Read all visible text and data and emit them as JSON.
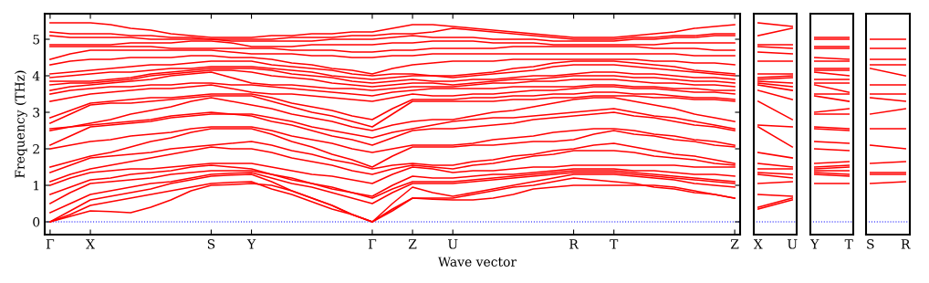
{
  "chart_data": [
    {
      "type": "line",
      "xlabel": "Wave vector",
      "ylabel": "Frequency (THz)",
      "categories": [
        "Γ",
        null,
        "X",
        null,
        null,
        null,
        null,
        null,
        "S",
        null,
        "Y",
        null,
        null,
        null,
        null,
        null,
        "Γ",
        null,
        "Z",
        null,
        "U",
        null,
        null,
        null,
        null,
        null,
        "R",
        null,
        "T",
        null,
        null,
        null,
        null,
        null,
        "Z"
      ],
      "ylim": [
        -0.35,
        5.7
      ],
      "yticks": [
        0,
        1,
        2,
        3,
        4,
        5
      ],
      "grid": false,
      "legend": false,
      "ref_lines": [
        {
          "axis": "y",
          "value": 0,
          "color": "#0000ff",
          "line_style": "dotted"
        }
      ],
      "series": [
        {
          "color": "#ff0000",
          "values": [
            0,
            0.15,
            0.3,
            0.28,
            0.25,
            0.4,
            0.6,
            0.85,
            1.0,
            1.02,
            1.05,
            1.0,
            0.85,
            0.65,
            0.45,
            0.2,
            0,
            0.35,
            0.65,
            0.62,
            0.6,
            0.6,
            0.65,
            0.75,
            0.9,
            0.95,
            1.0,
            1.0,
            1.0,
            1.0,
            1.0,
            0.95,
            0.85,
            0.75,
            0.65
          ]
        },
        {
          "color": "#ff0000",
          "values": [
            0,
            0.2,
            0.45,
            0.55,
            0.65,
            0.75,
            0.85,
            0.95,
            1.05,
            1.08,
            1.1,
            0.9,
            0.75,
            0.55,
            0.35,
            0.2,
            0,
            0.3,
            0.65,
            0.65,
            0.65,
            0.75,
            0.85,
            0.95,
            1.0,
            1.1,
            1.2,
            1.15,
            1.1,
            1.05,
            0.95,
            0.9,
            0.8,
            0.75,
            0.65
          ]
        },
        {
          "color": "#ff0000",
          "values": [
            0,
            0.3,
            0.6,
            0.7,
            0.8,
            0.9,
            1.05,
            1.15,
            1.25,
            1.28,
            1.3,
            1.1,
            0.85,
            0.65,
            0.45,
            0.2,
            0,
            0.5,
            0.95,
            0.8,
            0.7,
            0.8,
            0.9,
            1.0,
            1.1,
            1.2,
            1.3,
            1.3,
            1.3,
            1.25,
            1.2,
            1.15,
            1.05,
            1.0,
            0.95
          ]
        },
        {
          "color": "#ff0000",
          "values": [
            0.25,
            0.5,
            0.75,
            0.85,
            0.95,
            1.05,
            1.1,
            1.2,
            1.3,
            1.33,
            1.35,
            1.2,
            1.05,
            0.95,
            0.8,
            0.65,
            0.5,
            0.8,
            1.05,
            1.05,
            1.05,
            1.1,
            1.15,
            1.2,
            1.25,
            1.3,
            1.35,
            1.35,
            1.35,
            1.3,
            1.25,
            1.2,
            1.15,
            1.1,
            1.05
          ]
        },
        {
          "color": "#ff0000",
          "values": [
            0.5,
            0.8,
            1.05,
            1.1,
            1.15,
            1.2,
            1.3,
            1.35,
            1.4,
            1.4,
            1.4,
            1.3,
            1.15,
            1.05,
            0.9,
            0.8,
            0.65,
            0.9,
            1.1,
            1.1,
            1.1,
            1.15,
            1.2,
            1.25,
            1.3,
            1.35,
            1.4,
            1.4,
            1.4,
            1.35,
            1.3,
            1.25,
            1.2,
            1.15,
            1.1
          ]
        },
        {
          "color": "#ff0000",
          "values": [
            0.75,
            0.95,
            1.15,
            1.2,
            1.3,
            1.35,
            1.4,
            1.5,
            1.55,
            1.5,
            1.45,
            1.3,
            1.2,
            1.05,
            0.95,
            0.8,
            0.7,
            1.0,
            1.25,
            1.2,
            1.2,
            1.25,
            1.3,
            1.3,
            1.35,
            1.4,
            1.45,
            1.45,
            1.45,
            1.4,
            1.4,
            1.35,
            1.3,
            1.3,
            1.25
          ]
        },
        {
          "color": "#ff0000",
          "values": [
            1.0,
            1.2,
            1.35,
            1.4,
            1.45,
            1.45,
            1.5,
            1.55,
            1.6,
            1.6,
            1.6,
            1.5,
            1.4,
            1.3,
            1.25,
            1.15,
            1.05,
            1.3,
            1.5,
            1.45,
            1.35,
            1.4,
            1.4,
            1.45,
            1.5,
            1.5,
            1.55,
            1.55,
            1.55,
            1.55,
            1.55,
            1.55,
            1.5,
            1.5,
            1.5
          ]
        },
        {
          "color": "#ff0000",
          "values": [
            1.1,
            1.3,
            1.45,
            1.55,
            1.65,
            1.75,
            1.85,
            1.95,
            2.05,
            2.0,
            2.0,
            1.9,
            1.75,
            1.65,
            1.55,
            1.4,
            1.3,
            1.45,
            1.55,
            1.5,
            1.45,
            1.55,
            1.6,
            1.7,
            1.8,
            1.85,
            1.95,
            1.95,
            1.95,
            1.9,
            1.8,
            1.75,
            1.7,
            1.6,
            1.55
          ]
        },
        {
          "color": "#ff0000",
          "values": [
            1.35,
            1.55,
            1.75,
            1.8,
            1.85,
            1.9,
            2.0,
            2.05,
            2.1,
            2.15,
            2.2,
            2.1,
            1.95,
            1.85,
            1.7,
            1.6,
            1.45,
            1.55,
            1.6,
            1.55,
            1.55,
            1.65,
            1.7,
            1.8,
            1.85,
            1.95,
            2.0,
            2.1,
            2.15,
            2.05,
            1.95,
            1.85,
            1.8,
            1.7,
            1.6
          ]
        },
        {
          "color": "#ff0000",
          "values": [
            1.5,
            1.65,
            1.8,
            1.9,
            2.05,
            2.2,
            2.3,
            2.45,
            2.55,
            2.55,
            2.55,
            2.4,
            2.2,
            2.05,
            1.85,
            1.7,
            1.5,
            1.8,
            2.05,
            2.05,
            2.05,
            2.1,
            2.1,
            2.15,
            2.2,
            2.2,
            2.25,
            2.4,
            2.5,
            2.4,
            2.35,
            2.25,
            2.2,
            2.1,
            2.05
          ]
        },
        {
          "color": "#ff0000",
          "values": [
            2.0,
            2.1,
            2.2,
            2.25,
            2.35,
            2.4,
            2.45,
            2.55,
            2.6,
            2.6,
            2.6,
            2.5,
            2.35,
            2.25,
            2.15,
            2.0,
            1.9,
            2.0,
            2.1,
            2.1,
            2.1,
            2.15,
            2.25,
            2.3,
            2.35,
            2.45,
            2.5,
            2.55,
            2.55,
            2.5,
            2.4,
            2.35,
            2.25,
            2.2,
            2.1
          ]
        },
        {
          "color": "#ff0000",
          "values": [
            2.1,
            2.35,
            2.6,
            2.65,
            2.7,
            2.75,
            2.85,
            2.9,
            2.95,
            2.95,
            2.9,
            2.75,
            2.65,
            2.5,
            2.35,
            2.25,
            2.1,
            2.3,
            2.5,
            2.55,
            2.55,
            2.6,
            2.65,
            2.7,
            2.8,
            2.85,
            2.9,
            2.95,
            3.0,
            2.9,
            2.85,
            2.75,
            2.65,
            2.6,
            2.5
          ]
        },
        {
          "color": "#ff0000",
          "values": [
            2.5,
            2.6,
            2.65,
            2.7,
            2.75,
            2.8,
            2.9,
            2.95,
            3.0,
            2.95,
            2.95,
            2.85,
            2.75,
            2.6,
            2.5,
            2.4,
            2.3,
            2.45,
            2.55,
            2.65,
            2.75,
            2.8,
            2.85,
            2.85,
            2.9,
            2.95,
            3.0,
            3.05,
            3.1,
            3.0,
            2.9,
            2.85,
            2.75,
            2.65,
            2.55
          ]
        },
        {
          "color": "#ff0000",
          "values": [
            2.55,
            2.6,
            2.7,
            2.8,
            2.95,
            3.05,
            3.15,
            3.3,
            3.4,
            3.3,
            3.2,
            3.1,
            2.95,
            2.85,
            2.75,
            2.6,
            2.5,
            2.65,
            2.75,
            2.8,
            2.8,
            2.9,
            3.0,
            3.05,
            3.15,
            3.25,
            3.35,
            3.4,
            3.4,
            3.3,
            3.2,
            3.1,
            2.95,
            2.85,
            2.75
          ]
        },
        {
          "color": "#ff0000",
          "values": [
            2.7,
            2.95,
            3.2,
            3.25,
            3.25,
            3.3,
            3.35,
            3.4,
            3.45,
            3.45,
            3.45,
            3.3,
            3.15,
            3.0,
            2.9,
            2.75,
            2.6,
            2.95,
            3.3,
            3.3,
            3.3,
            3.3,
            3.3,
            3.35,
            3.35,
            3.4,
            3.4,
            3.45,
            3.45,
            3.45,
            3.4,
            3.4,
            3.35,
            3.35,
            3.3
          ]
        },
        {
          "color": "#ff0000",
          "values": [
            2.85,
            3.05,
            3.25,
            3.3,
            3.35,
            3.4,
            3.4,
            3.45,
            3.5,
            3.5,
            3.5,
            3.4,
            3.25,
            3.15,
            3.05,
            2.9,
            2.8,
            3.1,
            3.35,
            3.35,
            3.35,
            3.4,
            3.4,
            3.45,
            3.45,
            3.5,
            3.5,
            3.55,
            3.55,
            3.5,
            3.5,
            3.45,
            3.4,
            3.4,
            3.35
          ]
        },
        {
          "color": "#ff0000",
          "values": [
            3.3,
            3.4,
            3.5,
            3.55,
            3.6,
            3.65,
            3.65,
            3.7,
            3.75,
            3.65,
            3.55,
            3.5,
            3.5,
            3.45,
            3.4,
            3.35,
            3.3,
            3.4,
            3.5,
            3.45,
            3.45,
            3.5,
            3.5,
            3.55,
            3.6,
            3.6,
            3.65,
            3.7,
            3.7,
            3.65,
            3.65,
            3.6,
            3.55,
            3.55,
            3.5
          ]
        },
        {
          "color": "#ff0000",
          "values": [
            3.5,
            3.6,
            3.65,
            3.7,
            3.7,
            3.75,
            3.75,
            3.8,
            3.8,
            3.75,
            3.75,
            3.7,
            3.65,
            3.6,
            3.55,
            3.5,
            3.45,
            3.55,
            3.6,
            3.65,
            3.65,
            3.65,
            3.65,
            3.7,
            3.7,
            3.7,
            3.7,
            3.75,
            3.75,
            3.7,
            3.7,
            3.65,
            3.65,
            3.6,
            3.6
          ]
        },
        {
          "color": "#ff0000",
          "values": [
            3.6,
            3.7,
            3.75,
            3.8,
            3.85,
            3.9,
            4.0,
            4.05,
            4.1,
            3.95,
            3.8,
            3.75,
            3.75,
            3.7,
            3.65,
            3.65,
            3.6,
            3.65,
            3.7,
            3.7,
            3.7,
            3.75,
            3.8,
            3.8,
            3.85,
            3.85,
            3.9,
            3.9,
            3.9,
            3.85,
            3.8,
            3.8,
            3.75,
            3.75,
            3.7
          ]
        },
        {
          "color": "#ff0000",
          "values": [
            3.75,
            3.8,
            3.8,
            3.85,
            3.9,
            4.0,
            4.05,
            4.1,
            4.15,
            4.15,
            4.1,
            4.0,
            3.95,
            3.9,
            3.8,
            3.75,
            3.7,
            3.75,
            3.8,
            3.8,
            3.75,
            3.8,
            3.85,
            3.9,
            3.9,
            3.95,
            4.0,
            4.0,
            4.0,
            3.95,
            3.95,
            3.9,
            3.85,
            3.85,
            3.8
          ]
        },
        {
          "color": "#ff0000",
          "values": [
            3.85,
            3.85,
            3.85,
            3.9,
            3.95,
            4.05,
            4.1,
            4.15,
            4.2,
            4.2,
            4.2,
            4.15,
            4.05,
            4.0,
            3.95,
            3.85,
            3.8,
            3.85,
            3.9,
            3.85,
            3.85,
            3.9,
            3.9,
            3.95,
            4.0,
            4.0,
            4.05,
            4.1,
            4.1,
            4.05,
            4.05,
            4.0,
            3.95,
            3.95,
            3.9
          ]
        },
        {
          "color": "#ff0000",
          "values": [
            3.95,
            4.0,
            4.05,
            4.1,
            4.1,
            4.15,
            4.2,
            4.2,
            4.25,
            4.25,
            4.25,
            4.2,
            4.15,
            4.1,
            4.0,
            3.95,
            3.9,
            3.95,
            4.0,
            4.0,
            3.95,
            4.0,
            4.05,
            4.1,
            4.15,
            4.25,
            4.3,
            4.3,
            4.3,
            4.25,
            4.2,
            4.15,
            4.1,
            4.05,
            4.0
          ]
        },
        {
          "color": "#ff0000",
          "values": [
            4.05,
            4.1,
            4.15,
            4.2,
            4.25,
            4.3,
            4.3,
            4.35,
            4.4,
            4.4,
            4.4,
            4.3,
            4.25,
            4.2,
            4.15,
            4.05,
            4.0,
            4.05,
            4.05,
            4.0,
            4.0,
            4.05,
            4.1,
            4.2,
            4.25,
            4.35,
            4.4,
            4.4,
            4.4,
            4.35,
            4.3,
            4.25,
            4.15,
            4.1,
            4.05
          ]
        },
        {
          "color": "#ff0000",
          "values": [
            4.3,
            4.4,
            4.45,
            4.45,
            4.5,
            4.5,
            4.5,
            4.55,
            4.55,
            4.5,
            4.5,
            4.45,
            4.35,
            4.3,
            4.2,
            4.15,
            4.05,
            4.2,
            4.3,
            4.35,
            4.4,
            4.4,
            4.4,
            4.45,
            4.45,
            4.45,
            4.45,
            4.45,
            4.45,
            4.45,
            4.4,
            4.4,
            4.35,
            4.35,
            4.3
          ]
        },
        {
          "color": "#ff0000",
          "values": [
            4.45,
            4.6,
            4.7,
            4.7,
            4.7,
            4.7,
            4.7,
            4.7,
            4.7,
            4.65,
            4.6,
            4.6,
            4.6,
            4.55,
            4.55,
            4.5,
            4.5,
            4.55,
            4.55,
            4.6,
            4.6,
            4.6,
            4.6,
            4.6,
            4.6,
            4.6,
            4.6,
            4.6,
            4.6,
            4.6,
            4.6,
            4.6,
            4.55,
            4.55,
            4.55
          ]
        },
        {
          "color": "#ff0000",
          "values": [
            4.8,
            4.8,
            4.8,
            4.8,
            4.8,
            4.8,
            4.75,
            4.75,
            4.75,
            4.75,
            4.75,
            4.75,
            4.7,
            4.7,
            4.7,
            4.65,
            4.65,
            4.7,
            4.7,
            4.75,
            4.75,
            4.75,
            4.75,
            4.8,
            4.8,
            4.8,
            4.8,
            4.8,
            4.8,
            4.8,
            4.75,
            4.75,
            4.75,
            4.7,
            4.7
          ]
        },
        {
          "color": "#ff0000",
          "values": [
            4.85,
            4.85,
            4.85,
            4.85,
            4.9,
            4.9,
            4.9,
            4.95,
            4.95,
            4.9,
            4.8,
            4.8,
            4.8,
            4.85,
            4.85,
            4.85,
            4.85,
            4.9,
            4.9,
            4.95,
            4.95,
            4.95,
            4.9,
            4.9,
            4.9,
            4.85,
            4.85,
            4.85,
            4.85,
            4.85,
            4.85,
            4.9,
            4.9,
            4.9,
            4.9
          ]
        },
        {
          "color": "#ff0000",
          "values": [
            5.1,
            5.05,
            5.05,
            5.05,
            5.05,
            5.0,
            5.0,
            5.0,
            5.0,
            4.95,
            4.95,
            4.95,
            4.95,
            4.95,
            5.0,
            5.0,
            5.0,
            5.05,
            5.1,
            5.05,
            5.05,
            5.05,
            5.0,
            5.0,
            5.0,
            4.95,
            4.95,
            4.95,
            4.95,
            5.0,
            5.0,
            5.05,
            5.05,
            5.1,
            5.1
          ]
        },
        {
          "color": "#ff0000",
          "values": [
            5.2,
            5.15,
            5.15,
            5.15,
            5.1,
            5.1,
            5.05,
            5.05,
            5.0,
            5.0,
            5.0,
            5.0,
            5.05,
            5.05,
            5.05,
            5.1,
            5.1,
            5.15,
            5.15,
            5.2,
            5.3,
            5.25,
            5.2,
            5.15,
            5.1,
            5.05,
            5.0,
            5.0,
            5.0,
            5.05,
            5.05,
            5.1,
            5.1,
            5.15,
            5.15
          ]
        },
        {
          "color": "#ff0000",
          "values": [
            5.45,
            5.45,
            5.45,
            5.4,
            5.3,
            5.25,
            5.15,
            5.1,
            5.05,
            5.05,
            5.05,
            5.1,
            5.1,
            5.15,
            5.15,
            5.2,
            5.2,
            5.3,
            5.4,
            5.4,
            5.35,
            5.3,
            5.25,
            5.2,
            5.15,
            5.1,
            5.05,
            5.05,
            5.05,
            5.1,
            5.15,
            5.2,
            5.3,
            5.35,
            5.4
          ]
        }
      ]
    },
    {
      "type": "line",
      "categories": [
        "X",
        "U"
      ],
      "ylim": [
        -0.35,
        5.7
      ],
      "yticks": [
        0,
        1,
        2,
        3,
        4,
        5
      ],
      "tick_labels": "x",
      "grid": false,
      "legend": false,
      "ref_lines": [
        {
          "axis": "y",
          "value": 0,
          "color": "#0000ff",
          "line_style": "dotted"
        }
      ],
      "series": [
        {
          "color": "#ff0000",
          "values": [
            0.35,
            0.6
          ]
        },
        {
          "color": "#ff0000",
          "values": [
            0.4,
            0.65
          ]
        },
        {
          "color": "#ff0000",
          "values": [
            0.75,
            0.7
          ]
        },
        {
          "color": "#ff0000",
          "values": [
            1.05,
            1.1
          ]
        },
        {
          "color": "#ff0000",
          "values": [
            1.3,
            1.2
          ]
        },
        {
          "color": "#ff0000",
          "values": [
            1.35,
            1.3
          ]
        },
        {
          "color": "#ff0000",
          "values": [
            1.45,
            1.45
          ]
        },
        {
          "color": "#ff0000",
          "values": [
            1.6,
            1.5
          ]
        },
        {
          "color": "#ff0000",
          "values": [
            1.9,
            1.75
          ]
        },
        {
          "color": "#ff0000",
          "values": [
            2.6,
            2.05
          ]
        },
        {
          "color": "#ff0000",
          "values": [
            2.65,
            2.6
          ]
        },
        {
          "color": "#ff0000",
          "values": [
            3.3,
            2.8
          ]
        },
        {
          "color": "#ff0000",
          "values": [
            3.6,
            3.35
          ]
        },
        {
          "color": "#ff0000",
          "values": [
            3.75,
            3.6
          ]
        },
        {
          "color": "#ff0000",
          "values": [
            3.8,
            3.7
          ]
        },
        {
          "color": "#ff0000",
          "values": [
            3.85,
            3.8
          ]
        },
        {
          "color": "#ff0000",
          "values": [
            3.9,
            3.95
          ]
        },
        {
          "color": "#ff0000",
          "values": [
            3.95,
            4.0
          ]
        },
        {
          "color": "#ff0000",
          "values": [
            4.05,
            4.05
          ]
        },
        {
          "color": "#ff0000",
          "values": [
            4.4,
            4.4
          ]
        },
        {
          "color": "#ff0000",
          "values": [
            4.65,
            4.6
          ]
        },
        {
          "color": "#ff0000",
          "values": [
            4.8,
            4.75
          ]
        },
        {
          "color": "#ff0000",
          "values": [
            4.85,
            4.85
          ]
        },
        {
          "color": "#ff0000",
          "values": [
            5.1,
            5.3
          ]
        },
        {
          "color": "#ff0000",
          "values": [
            5.45,
            5.35
          ]
        }
      ]
    },
    {
      "type": "line",
      "categories": [
        "Y",
        "T"
      ],
      "ylim": [
        -0.35,
        5.7
      ],
      "yticks": [
        0,
        1,
        2,
        3,
        4,
        5
      ],
      "tick_labels": "x",
      "grid": false,
      "legend": false,
      "ref_lines": [
        {
          "axis": "y",
          "value": 0,
          "color": "#0000ff",
          "line_style": "dotted"
        }
      ],
      "series": [
        {
          "color": "#ff0000",
          "values": [
            1.05,
            1.05
          ]
        },
        {
          "color": "#ff0000",
          "values": [
            1.3,
            1.25
          ]
        },
        {
          "color": "#ff0000",
          "values": [
            1.35,
            1.3
          ]
        },
        {
          "color": "#ff0000",
          "values": [
            1.4,
            1.4
          ]
        },
        {
          "color": "#ff0000",
          "values": [
            1.45,
            1.5
          ]
        },
        {
          "color": "#ff0000",
          "values": [
            1.5,
            1.55
          ]
        },
        {
          "color": "#ff0000",
          "values": [
            1.6,
            1.65
          ]
        },
        {
          "color": "#ff0000",
          "values": [
            2.0,
            1.95
          ]
        },
        {
          "color": "#ff0000",
          "values": [
            2.2,
            2.15
          ]
        },
        {
          "color": "#ff0000",
          "values": [
            2.55,
            2.5
          ]
        },
        {
          "color": "#ff0000",
          "values": [
            2.6,
            2.55
          ]
        },
        {
          "color": "#ff0000",
          "values": [
            2.95,
            2.95
          ]
        },
        {
          "color": "#ff0000",
          "values": [
            3.0,
            3.1
          ]
        },
        {
          "color": "#ff0000",
          "values": [
            3.45,
            3.3
          ]
        },
        {
          "color": "#ff0000",
          "values": [
            3.5,
            3.5
          ]
        },
        {
          "color": "#ff0000",
          "values": [
            3.75,
            3.55
          ]
        },
        {
          "color": "#ff0000",
          "values": [
            3.8,
            3.8
          ]
        },
        {
          "color": "#ff0000",
          "values": [
            3.9,
            3.9
          ]
        },
        {
          "color": "#ff0000",
          "values": [
            4.1,
            4.0
          ]
        },
        {
          "color": "#ff0000",
          "values": [
            4.15,
            4.15
          ]
        },
        {
          "color": "#ff0000",
          "values": [
            4.2,
            4.2
          ]
        },
        {
          "color": "#ff0000",
          "values": [
            4.4,
            4.4
          ]
        },
        {
          "color": "#ff0000",
          "values": [
            4.5,
            4.45
          ]
        },
        {
          "color": "#ff0000",
          "values": [
            4.75,
            4.75
          ]
        },
        {
          "color": "#ff0000",
          "values": [
            4.8,
            4.8
          ]
        },
        {
          "color": "#ff0000",
          "values": [
            5.0,
            5.0
          ]
        },
        {
          "color": "#ff0000",
          "values": [
            5.05,
            5.05
          ]
        }
      ]
    },
    {
      "type": "line",
      "categories": [
        "S",
        "R"
      ],
      "ylim": [
        -0.35,
        5.7
      ],
      "yticks": [
        0,
        1,
        2,
        3,
        4,
        5
      ],
      "tick_labels": "x",
      "grid": false,
      "legend": false,
      "ref_lines": [
        {
          "axis": "y",
          "value": 0,
          "color": "#0000ff",
          "line_style": "dotted"
        }
      ],
      "series": [
        {
          "color": "#ff0000",
          "values": [
            1.05,
            1.1
          ]
        },
        {
          "color": "#ff0000",
          "values": [
            1.3,
            1.3
          ]
        },
        {
          "color": "#ff0000",
          "values": [
            1.35,
            1.35
          ]
        },
        {
          "color": "#ff0000",
          "values": [
            1.6,
            1.65
          ]
        },
        {
          "color": "#ff0000",
          "values": [
            2.1,
            2.0
          ]
        },
        {
          "color": "#ff0000",
          "values": [
            2.55,
            2.55
          ]
        },
        {
          "color": "#ff0000",
          "values": [
            2.95,
            3.1
          ]
        },
        {
          "color": "#ff0000",
          "values": [
            3.4,
            3.3
          ]
        },
        {
          "color": "#ff0000",
          "values": [
            3.5,
            3.5
          ]
        },
        {
          "color": "#ff0000",
          "values": [
            3.75,
            3.75
          ]
        },
        {
          "color": "#ff0000",
          "values": [
            4.2,
            4.0
          ]
        },
        {
          "color": "#ff0000",
          "values": [
            4.3,
            4.3
          ]
        },
        {
          "color": "#ff0000",
          "values": [
            4.45,
            4.45
          ]
        },
        {
          "color": "#ff0000",
          "values": [
            4.75,
            4.75
          ]
        },
        {
          "color": "#ff0000",
          "values": [
            5.0,
            5.0
          ]
        }
      ]
    }
  ]
}
